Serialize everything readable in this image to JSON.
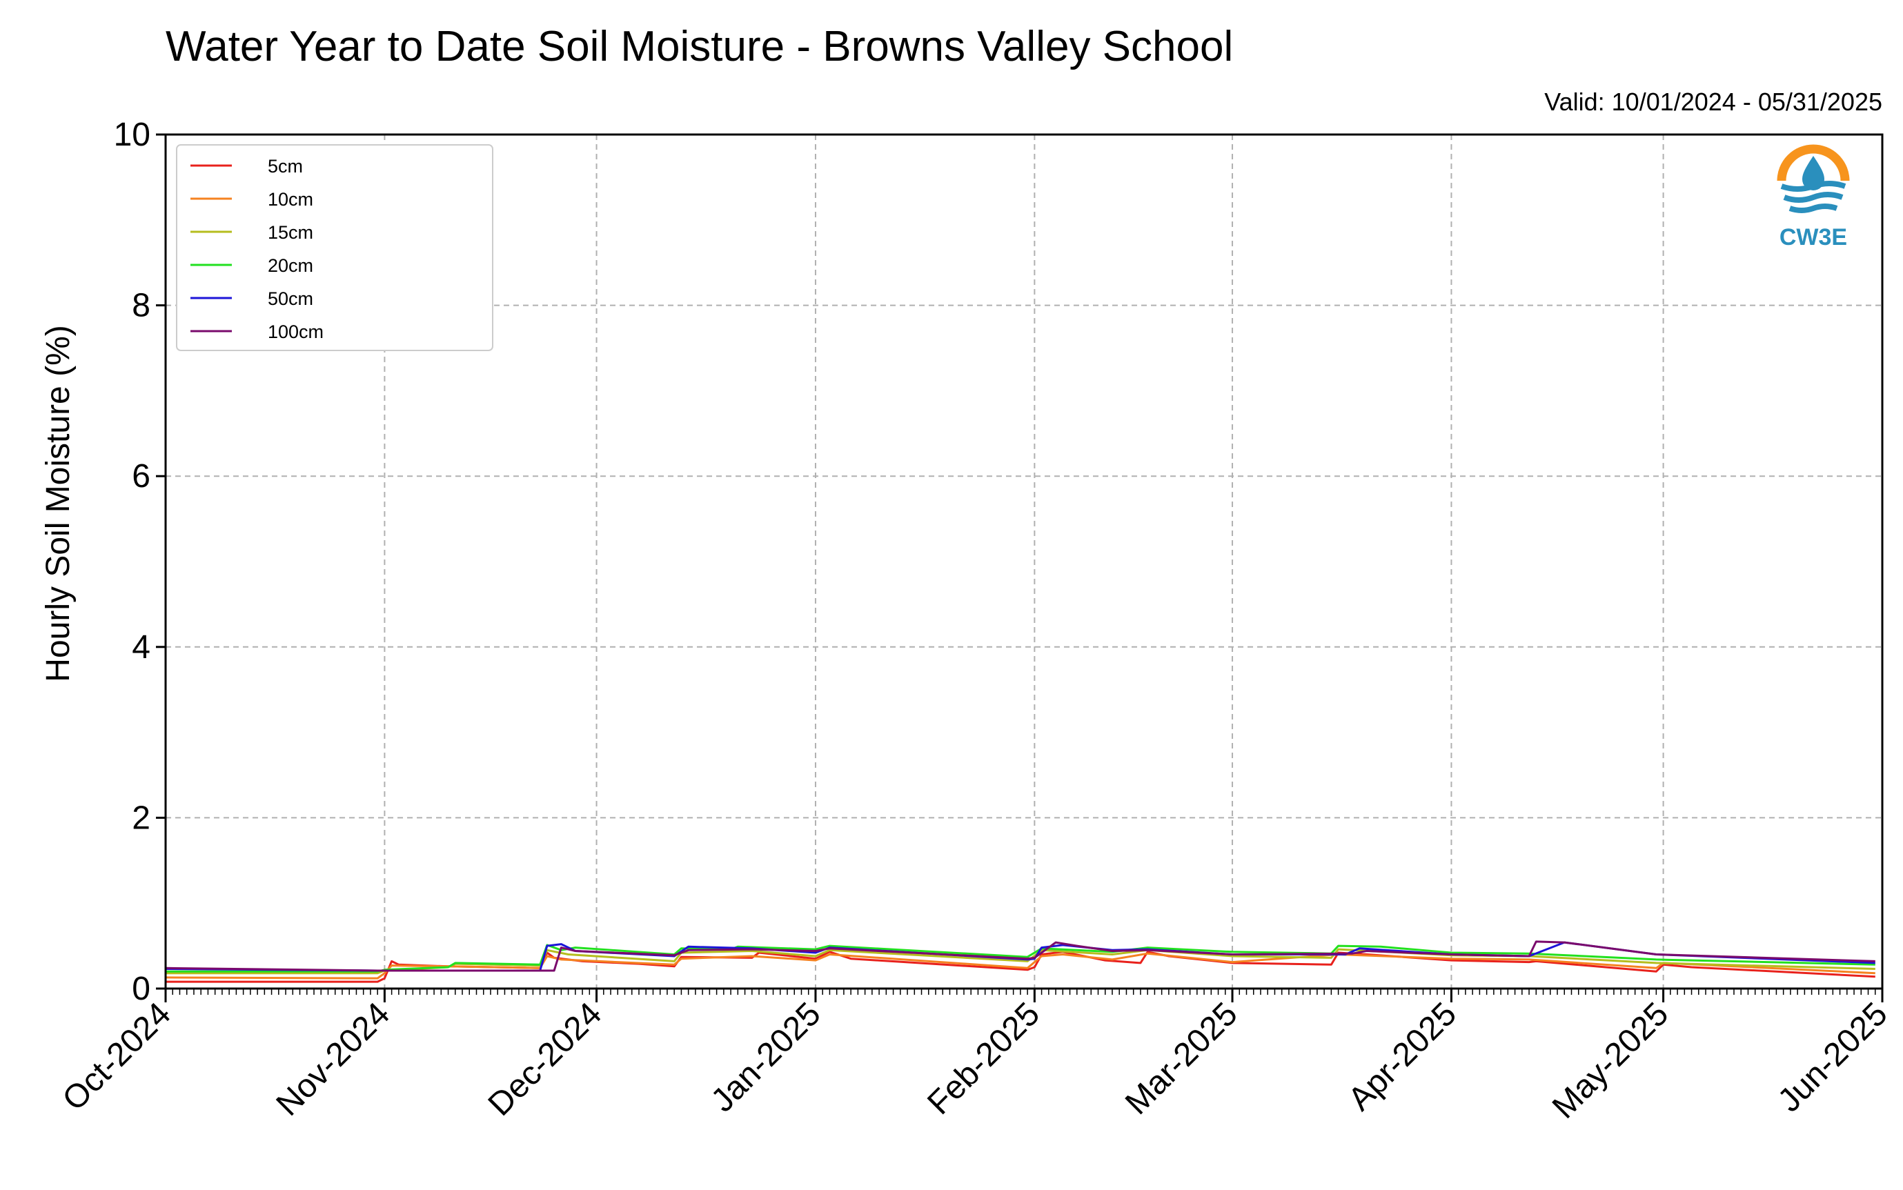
{
  "chart_data": {
    "type": "line",
    "title": "Water Year to Date Soil Moisture - Browns Valley School",
    "subtitle": "Valid: 10/01/2024 - 05/31/2025",
    "xlabel": "",
    "ylabel": "Hourly Soil Moisture (%)",
    "ylim": [
      0,
      10
    ],
    "yticks": [
      0,
      2,
      4,
      6,
      8,
      10
    ],
    "xlim": [
      "2024-10-01",
      "2025-06-01"
    ],
    "xticks": [
      {
        "date": "2024-10-01",
        "label": "Oct-2024"
      },
      {
        "date": "2024-11-01",
        "label": "Nov-2024"
      },
      {
        "date": "2024-12-01",
        "label": "Dec-2024"
      },
      {
        "date": "2025-01-01",
        "label": "Jan-2025"
      },
      {
        "date": "2025-02-01",
        "label": "Feb-2025"
      },
      {
        "date": "2025-03-01",
        "label": "Mar-2025"
      },
      {
        "date": "2025-04-01",
        "label": "Apr-2025"
      },
      {
        "date": "2025-05-01",
        "label": "May-2025"
      },
      {
        "date": "2025-06-01",
        "label": "Jun-2025"
      }
    ],
    "grid": true,
    "legend_position": "top-left",
    "series": [
      {
        "name": "5cm",
        "color": "#e8211c",
        "points": [
          [
            "2024-10-01",
            0.08
          ],
          [
            "2024-10-31",
            0.08
          ],
          [
            "2024-11-01",
            0.12
          ],
          [
            "2024-11-02",
            0.32
          ],
          [
            "2024-11-03",
            0.28
          ],
          [
            "2024-11-10",
            0.26
          ],
          [
            "2024-11-23",
            0.24
          ],
          [
            "2024-11-24",
            0.42
          ],
          [
            "2024-11-25",
            0.36
          ],
          [
            "2024-11-29",
            0.32
          ],
          [
            "2024-12-07",
            0.29
          ],
          [
            "2024-12-12",
            0.26
          ],
          [
            "2024-12-13",
            0.37
          ],
          [
            "2024-12-23",
            0.36
          ],
          [
            "2024-12-24",
            0.42
          ],
          [
            "2025-01-01",
            0.35
          ],
          [
            "2025-01-03",
            0.43
          ],
          [
            "2025-01-06",
            0.35
          ],
          [
            "2025-01-31",
            0.22
          ],
          [
            "2025-02-01",
            0.25
          ],
          [
            "2025-02-02",
            0.4
          ],
          [
            "2025-02-05",
            0.43
          ],
          [
            "2025-02-11",
            0.33
          ],
          [
            "2025-02-16",
            0.3
          ],
          [
            "2025-02-17",
            0.43
          ],
          [
            "2025-02-20",
            0.38
          ],
          [
            "2025-03-01",
            0.3
          ],
          [
            "2025-03-15",
            0.28
          ],
          [
            "2025-03-16",
            0.42
          ],
          [
            "2025-03-20",
            0.4
          ],
          [
            "2025-04-01",
            0.33
          ],
          [
            "2025-04-12",
            0.31
          ],
          [
            "2025-04-13",
            0.32
          ],
          [
            "2025-04-30",
            0.2
          ],
          [
            "2025-05-01",
            0.28
          ],
          [
            "2025-05-05",
            0.25
          ],
          [
            "2025-05-31",
            0.14
          ]
        ]
      },
      {
        "name": "10cm",
        "color": "#f58220",
        "points": [
          [
            "2024-10-01",
            0.13
          ],
          [
            "2024-10-31",
            0.12
          ],
          [
            "2024-11-01",
            0.18
          ],
          [
            "2024-11-02",
            0.27
          ],
          [
            "2024-11-10",
            0.26
          ],
          [
            "2024-11-23",
            0.24
          ],
          [
            "2024-11-24",
            0.38
          ],
          [
            "2024-11-26",
            0.34
          ],
          [
            "2024-12-12",
            0.28
          ],
          [
            "2024-12-13",
            0.35
          ],
          [
            "2024-12-23",
            0.38
          ],
          [
            "2025-01-01",
            0.33
          ],
          [
            "2025-01-03",
            0.4
          ],
          [
            "2025-01-31",
            0.24
          ],
          [
            "2025-02-02",
            0.38
          ],
          [
            "2025-02-05",
            0.4
          ],
          [
            "2025-02-12",
            0.34
          ],
          [
            "2025-02-17",
            0.41
          ],
          [
            "2025-03-01",
            0.31
          ],
          [
            "2025-03-16",
            0.4
          ],
          [
            "2025-04-01",
            0.35
          ],
          [
            "2025-04-12",
            0.34
          ],
          [
            "2025-04-30",
            0.24
          ],
          [
            "2025-05-01",
            0.3
          ],
          [
            "2025-05-31",
            0.18
          ]
        ]
      },
      {
        "name": "15cm",
        "color": "#b5bd1e",
        "points": [
          [
            "2024-10-01",
            0.18
          ],
          [
            "2024-10-31",
            0.18
          ],
          [
            "2024-11-01",
            0.21
          ],
          [
            "2024-11-10",
            0.25
          ],
          [
            "2024-11-11",
            0.29
          ],
          [
            "2024-11-23",
            0.27
          ],
          [
            "2024-11-24",
            0.45
          ],
          [
            "2024-11-27",
            0.4
          ],
          [
            "2024-12-12",
            0.32
          ],
          [
            "2024-12-13",
            0.42
          ],
          [
            "2024-12-23",
            0.44
          ],
          [
            "2025-01-01",
            0.38
          ],
          [
            "2025-01-03",
            0.45
          ],
          [
            "2025-01-31",
            0.32
          ],
          [
            "2025-02-02",
            0.45
          ],
          [
            "2025-02-12",
            0.4
          ],
          [
            "2025-02-17",
            0.45
          ],
          [
            "2025-03-01",
            0.38
          ],
          [
            "2025-03-15",
            0.36
          ],
          [
            "2025-03-16",
            0.46
          ],
          [
            "2025-04-01",
            0.39
          ],
          [
            "2025-04-12",
            0.38
          ],
          [
            "2025-04-30",
            0.3
          ],
          [
            "2025-05-31",
            0.23
          ]
        ]
      },
      {
        "name": "20cm",
        "color": "#22e01f",
        "points": [
          [
            "2024-10-01",
            0.2
          ],
          [
            "2024-10-31",
            0.2
          ],
          [
            "2024-11-01",
            0.22
          ],
          [
            "2024-11-10",
            0.25
          ],
          [
            "2024-11-11",
            0.3
          ],
          [
            "2024-11-23",
            0.28
          ],
          [
            "2024-11-24",
            0.51
          ],
          [
            "2024-11-26",
            0.45
          ],
          [
            "2024-11-28",
            0.48
          ],
          [
            "2024-12-12",
            0.4
          ],
          [
            "2024-12-13",
            0.47
          ],
          [
            "2024-12-20",
            0.46
          ],
          [
            "2024-12-21",
            0.49
          ],
          [
            "2025-01-01",
            0.46
          ],
          [
            "2025-01-03",
            0.5
          ],
          [
            "2025-01-31",
            0.37
          ],
          [
            "2025-02-02",
            0.47
          ],
          [
            "2025-02-12",
            0.43
          ],
          [
            "2025-02-17",
            0.48
          ],
          [
            "2025-03-01",
            0.43
          ],
          [
            "2025-03-15",
            0.41
          ],
          [
            "2025-03-16",
            0.5
          ],
          [
            "2025-03-22",
            0.49
          ],
          [
            "2025-04-01",
            0.42
          ],
          [
            "2025-04-12",
            0.41
          ],
          [
            "2025-04-30",
            0.34
          ],
          [
            "2025-05-31",
            0.28
          ]
        ]
      },
      {
        "name": "50cm",
        "color": "#1c14d8",
        "points": [
          [
            "2024-10-01",
            0.23
          ],
          [
            "2024-10-31",
            0.21
          ],
          [
            "2024-11-23",
            0.21
          ],
          [
            "2024-11-24",
            0.5
          ],
          [
            "2024-11-26",
            0.52
          ],
          [
            "2024-11-28",
            0.44
          ],
          [
            "2024-12-12",
            0.38
          ],
          [
            "2024-12-14",
            0.49
          ],
          [
            "2024-12-23",
            0.47
          ],
          [
            "2025-01-01",
            0.42
          ],
          [
            "2025-01-03",
            0.48
          ],
          [
            "2025-01-31",
            0.34
          ],
          [
            "2025-02-01",
            0.35
          ],
          [
            "2025-02-02",
            0.48
          ],
          [
            "2025-02-05",
            0.51
          ],
          [
            "2025-02-12",
            0.45
          ],
          [
            "2025-02-17",
            0.46
          ],
          [
            "2025-03-01",
            0.4
          ],
          [
            "2025-03-17",
            0.4
          ],
          [
            "2025-03-19",
            0.47
          ],
          [
            "2025-04-01",
            0.4
          ],
          [
            "2025-04-12",
            0.38
          ],
          [
            "2025-04-17",
            0.54
          ],
          [
            "2025-04-30",
            0.4
          ],
          [
            "2025-05-31",
            0.3
          ]
        ]
      },
      {
        "name": "100cm",
        "color": "#7a0a6c",
        "points": [
          [
            "2024-10-01",
            0.24
          ],
          [
            "2024-10-31",
            0.21
          ],
          [
            "2024-11-25",
            0.21
          ],
          [
            "2024-11-26",
            0.48
          ],
          [
            "2024-11-28",
            0.44
          ],
          [
            "2024-12-12",
            0.39
          ],
          [
            "2024-12-14",
            0.45
          ],
          [
            "2024-12-23",
            0.46
          ],
          [
            "2025-01-01",
            0.44
          ],
          [
            "2025-01-03",
            0.47
          ],
          [
            "2025-01-31",
            0.35
          ],
          [
            "2025-02-01",
            0.36
          ],
          [
            "2025-02-04",
            0.54
          ],
          [
            "2025-02-07",
            0.5
          ],
          [
            "2025-02-12",
            0.44
          ],
          [
            "2025-02-17",
            0.45
          ],
          [
            "2025-03-01",
            0.4
          ],
          [
            "2025-03-18",
            0.41
          ],
          [
            "2025-03-20",
            0.44
          ],
          [
            "2025-04-01",
            0.4
          ],
          [
            "2025-04-12",
            0.38
          ],
          [
            "2025-04-13",
            0.55
          ],
          [
            "2025-04-17",
            0.54
          ],
          [
            "2025-04-30",
            0.4
          ],
          [
            "2025-05-31",
            0.32
          ]
        ]
      }
    ]
  },
  "logo": {
    "text": "CW3E",
    "ring_color": "#f7941d",
    "blue_color": "#2a8fbd"
  }
}
